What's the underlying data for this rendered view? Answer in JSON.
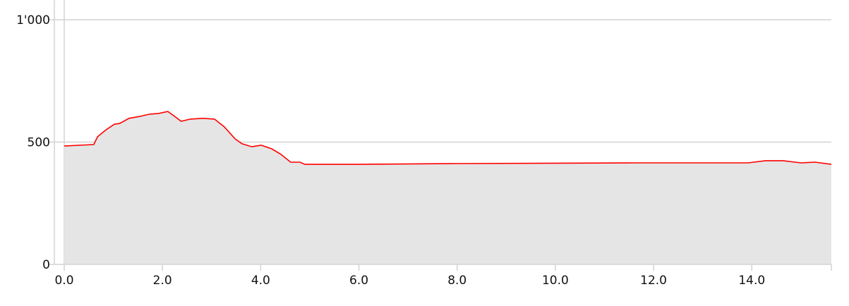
{
  "chart_data": {
    "type": "area",
    "title": "",
    "xlabel": "",
    "ylabel": "",
    "xlim": [
      0,
      15.62
    ],
    "ylim": [
      0,
      1000
    ],
    "grid": true,
    "x_ticks": [
      0,
      2,
      4,
      6,
      8,
      10,
      12,
      14
    ],
    "x_tick_labels": [
      "0.0",
      "2.0",
      "4.0",
      "6.0",
      "8.0",
      "10.0",
      "12.0",
      "14.0"
    ],
    "y_ticks": [
      0,
      500,
      1000
    ],
    "y_tick_labels": [
      "0",
      "500",
      "1'000"
    ],
    "colors": {
      "line": "#ff0000",
      "fill": "#e5e5e5",
      "grid": "#d3d3d3"
    },
    "series": [
      {
        "x": [
          0,
          0.6,
          0.68,
          0.85,
          1.02,
          1.13,
          1.32,
          1.54,
          1.74,
          1.92,
          2.11,
          2.25,
          2.38,
          2.57,
          2.83,
          3.06,
          3.26,
          3.48,
          3.62,
          3.82,
          4.01,
          4.22,
          4.41,
          4.61,
          4.8,
          4.9,
          5.88,
          8.03,
          11.62,
          13.92,
          14.28,
          14.64,
          15.0,
          15.29,
          15.62
        ],
        "y": [
          484,
          490,
          522,
          550,
          573,
          576,
          597,
          605,
          614,
          617,
          625,
          605,
          585,
          594,
          597,
          594,
          562,
          513,
          493,
          481,
          487,
          473,
          450,
          418,
          418,
          409,
          409,
          412,
          415,
          415,
          424,
          424,
          415,
          418,
          409
        ]
      }
    ]
  }
}
